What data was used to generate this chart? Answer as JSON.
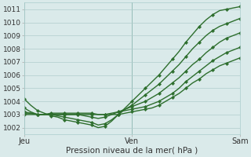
{
  "xlabel": "Pression niveau de la mer( hPa )",
  "bg_color": "#daeaea",
  "grid_color": "#b0cccc",
  "line_color": "#2d6e2d",
  "xlim": [
    0,
    48
  ],
  "ylim": [
    1001.5,
    1011.5
  ],
  "yticks": [
    1002,
    1003,
    1004,
    1005,
    1006,
    1007,
    1008,
    1009,
    1010,
    1011
  ],
  "xtick_positions": [
    0,
    24,
    48
  ],
  "xtick_labels": [
    "Jeu",
    "Ven",
    "Sam"
  ],
  "series": [
    [
      1004.2,
      1003.7,
      1003.3,
      1003.1,
      1002.9,
      1002.8,
      1002.6,
      1002.5,
      1002.4,
      1002.3,
      1002.2,
      1002.0,
      1002.1,
      1002.5,
      1003.0,
      1003.5,
      1004.0,
      1004.5,
      1005.0,
      1005.5,
      1006.0,
      1006.6,
      1007.2,
      1007.8,
      1008.5,
      1009.1,
      1009.7,
      1010.2,
      1010.6,
      1010.9,
      1011.0,
      1011.1,
      1011.2
    ],
    [
      1003.5,
      1003.2,
      1003.0,
      1003.0,
      1003.0,
      1002.9,
      1002.8,
      1002.7,
      1002.6,
      1002.5,
      1002.4,
      1002.2,
      1002.3,
      1002.6,
      1003.0,
      1003.4,
      1003.7,
      1004.1,
      1004.5,
      1004.9,
      1005.3,
      1005.8,
      1006.3,
      1006.8,
      1007.4,
      1008.0,
      1008.5,
      1009.0,
      1009.4,
      1009.7,
      1009.9,
      1010.1,
      1010.3
    ],
    [
      1003.2,
      1003.1,
      1003.0,
      1003.0,
      1003.0,
      1003.0,
      1003.0,
      1003.0,
      1003.0,
      1002.9,
      1002.8,
      1002.7,
      1002.8,
      1003.0,
      1003.2,
      1003.4,
      1003.6,
      1003.8,
      1004.0,
      1004.3,
      1004.6,
      1005.0,
      1005.4,
      1005.8,
      1006.3,
      1006.8,
      1007.2,
      1007.7,
      1008.1,
      1008.5,
      1008.8,
      1009.0,
      1009.2
    ],
    [
      1003.1,
      1003.1,
      1003.0,
      1003.0,
      1003.0,
      1003.0,
      1003.0,
      1003.0,
      1003.0,
      1003.0,
      1003.0,
      1003.0,
      1003.0,
      1003.1,
      1003.2,
      1003.3,
      1003.4,
      1003.5,
      1003.6,
      1003.8,
      1004.0,
      1004.3,
      1004.6,
      1005.0,
      1005.5,
      1005.9,
      1006.3,
      1006.7,
      1007.1,
      1007.4,
      1007.7,
      1007.9,
      1008.1
    ],
    [
      1003.0,
      1003.0,
      1003.0,
      1003.0,
      1003.1,
      1003.1,
      1003.1,
      1003.1,
      1003.1,
      1003.1,
      1003.1,
      1003.0,
      1003.0,
      1003.0,
      1003.0,
      1003.1,
      1003.2,
      1003.3,
      1003.4,
      1003.5,
      1003.7,
      1004.0,
      1004.3,
      1004.6,
      1005.0,
      1005.4,
      1005.7,
      1006.1,
      1006.4,
      1006.7,
      1006.9,
      1007.1,
      1007.3
    ]
  ]
}
